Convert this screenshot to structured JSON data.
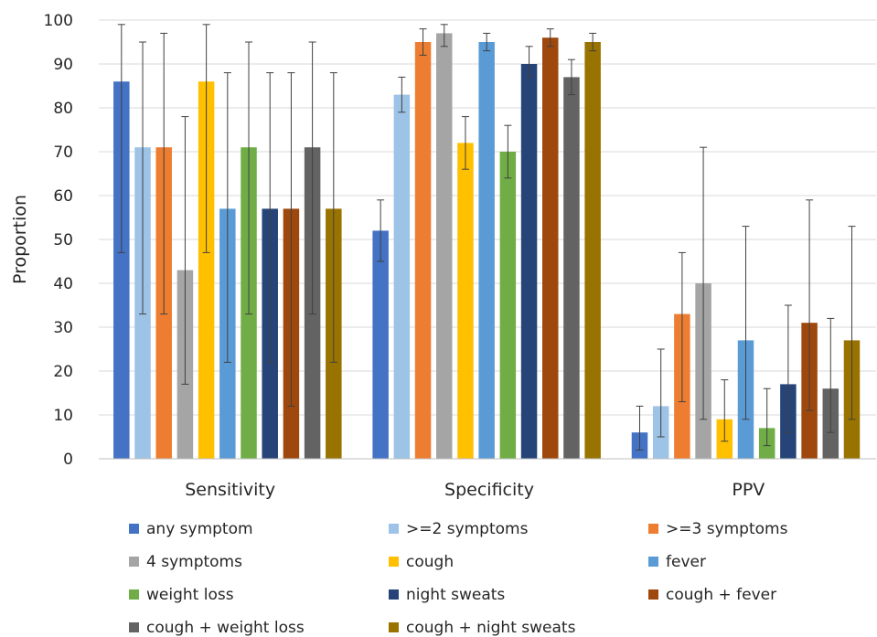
{
  "chart_data": {
    "type": "bar",
    "title": "",
    "xlabel": "",
    "ylabel": "Proportion",
    "ylim": [
      0,
      100
    ],
    "yticks": [
      0,
      10,
      20,
      30,
      40,
      50,
      60,
      70,
      80,
      90,
      100
    ],
    "grid": true,
    "legend_position": "bottom",
    "error_bars": true,
    "categories": [
      "Sensitivity",
      "Specificity",
      "PPV"
    ],
    "series": [
      {
        "name": "any symptom",
        "color": "#4472c4",
        "values": [
          86,
          52,
          6
        ],
        "lower": [
          47,
          45,
          2
        ],
        "upper": [
          99,
          59,
          12
        ]
      },
      {
        "name": ">=2 symptoms",
        "color": "#9dc3e6",
        "values": [
          71,
          83,
          12
        ],
        "lower": [
          33,
          79,
          5
        ],
        "upper": [
          95,
          87,
          25
        ]
      },
      {
        "name": ">=3 symptoms",
        "color": "#ed7d31",
        "values": [
          71,
          95,
          33
        ],
        "lower": [
          33,
          92,
          13
        ],
        "upper": [
          97,
          98,
          47
        ]
      },
      {
        "name": "4 symptoms",
        "color": "#a5a5a5",
        "values": [
          43,
          97,
          40
        ],
        "lower": [
          17,
          94,
          9
        ],
        "upper": [
          78,
          99,
          71
        ]
      },
      {
        "name": "cough",
        "color": "#ffc000",
        "values": [
          86,
          72,
          9
        ],
        "lower": [
          47,
          66,
          4
        ],
        "upper": [
          99,
          78,
          18
        ]
      },
      {
        "name": "fever",
        "color": "#5b9bd5",
        "values": [
          57,
          95,
          27
        ],
        "lower": [
          22,
          93,
          9
        ],
        "upper": [
          88,
          97,
          53
        ]
      },
      {
        "name": "weight loss",
        "color": "#70ad47",
        "values": [
          71,
          70,
          7
        ],
        "lower": [
          33,
          64,
          3
        ],
        "upper": [
          95,
          76,
          16
        ]
      },
      {
        "name": "night sweats",
        "color": "#264478",
        "values": [
          57,
          90,
          17
        ],
        "lower": [
          22,
          87,
          6
        ],
        "upper": [
          88,
          94,
          35
        ]
      },
      {
        "name": "cough + fever",
        "color": "#9e480e",
        "values": [
          57,
          96,
          31
        ],
        "lower": [
          12,
          94,
          11
        ],
        "upper": [
          88,
          98,
          59
        ]
      },
      {
        "name": "cough + weight loss",
        "color": "#636363",
        "values": [
          71,
          87,
          16
        ],
        "lower": [
          33,
          83,
          6
        ],
        "upper": [
          95,
          91,
          32
        ]
      },
      {
        "name": "cough + night sweats",
        "color": "#997300",
        "values": [
          57,
          95,
          27
        ],
        "lower": [
          22,
          93,
          9
        ],
        "upper": [
          88,
          97,
          53
        ]
      }
    ]
  }
}
